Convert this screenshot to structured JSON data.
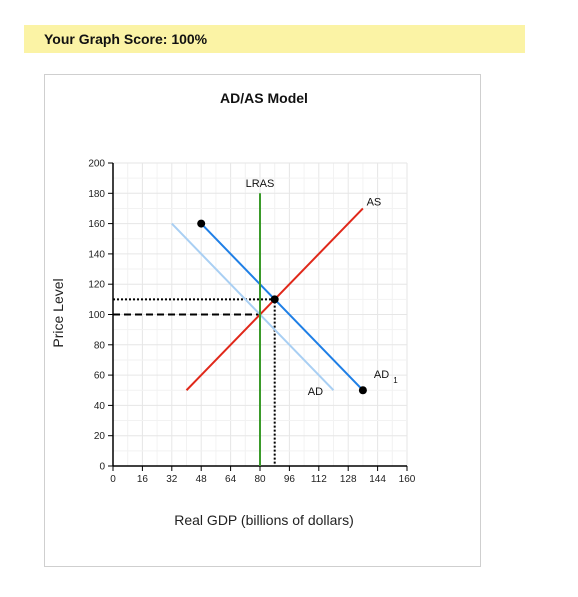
{
  "score_banner": {
    "text": "Your Graph Score: 100%"
  },
  "chart_data": {
    "type": "line",
    "title": "AD/AS Model",
    "xlabel": "Real GDP (billions of dollars)",
    "ylabel": "Price Level",
    "xlim": [
      0,
      160
    ],
    "ylim": [
      0,
      200
    ],
    "xticks": [
      0,
      16,
      32,
      48,
      64,
      80,
      96,
      112,
      128,
      144,
      160
    ],
    "yticks": [
      0,
      20,
      40,
      60,
      80,
      100,
      120,
      140,
      160,
      180,
      200
    ],
    "grid": true,
    "series": [
      {
        "name": "AD",
        "color": "#a9cff3",
        "points": [
          [
            32,
            160
          ],
          [
            120,
            50
          ]
        ]
      },
      {
        "name": "AD",
        "sub": "1",
        "color": "#1f7fe6",
        "points": [
          [
            48,
            160
          ],
          [
            136,
            50
          ]
        ]
      },
      {
        "name": "AS",
        "color": "#e0281a",
        "points": [
          [
            40,
            50
          ],
          [
            136,
            170
          ]
        ]
      },
      {
        "name": "LRAS",
        "color": "#3a9a2a",
        "points": [
          [
            80,
            0
          ],
          [
            80,
            180
          ]
        ]
      }
    ],
    "markers": [
      [
        48,
        160
      ],
      [
        136,
        50
      ],
      [
        88,
        110
      ]
    ],
    "reference_lines": [
      {
        "style": "dashed",
        "points": [
          [
            0,
            100
          ],
          [
            80,
            100
          ]
        ]
      },
      {
        "style": "dotted",
        "points": [
          [
            0,
            110
          ],
          [
            88,
            110
          ],
          [
            88,
            0
          ]
        ]
      }
    ]
  }
}
